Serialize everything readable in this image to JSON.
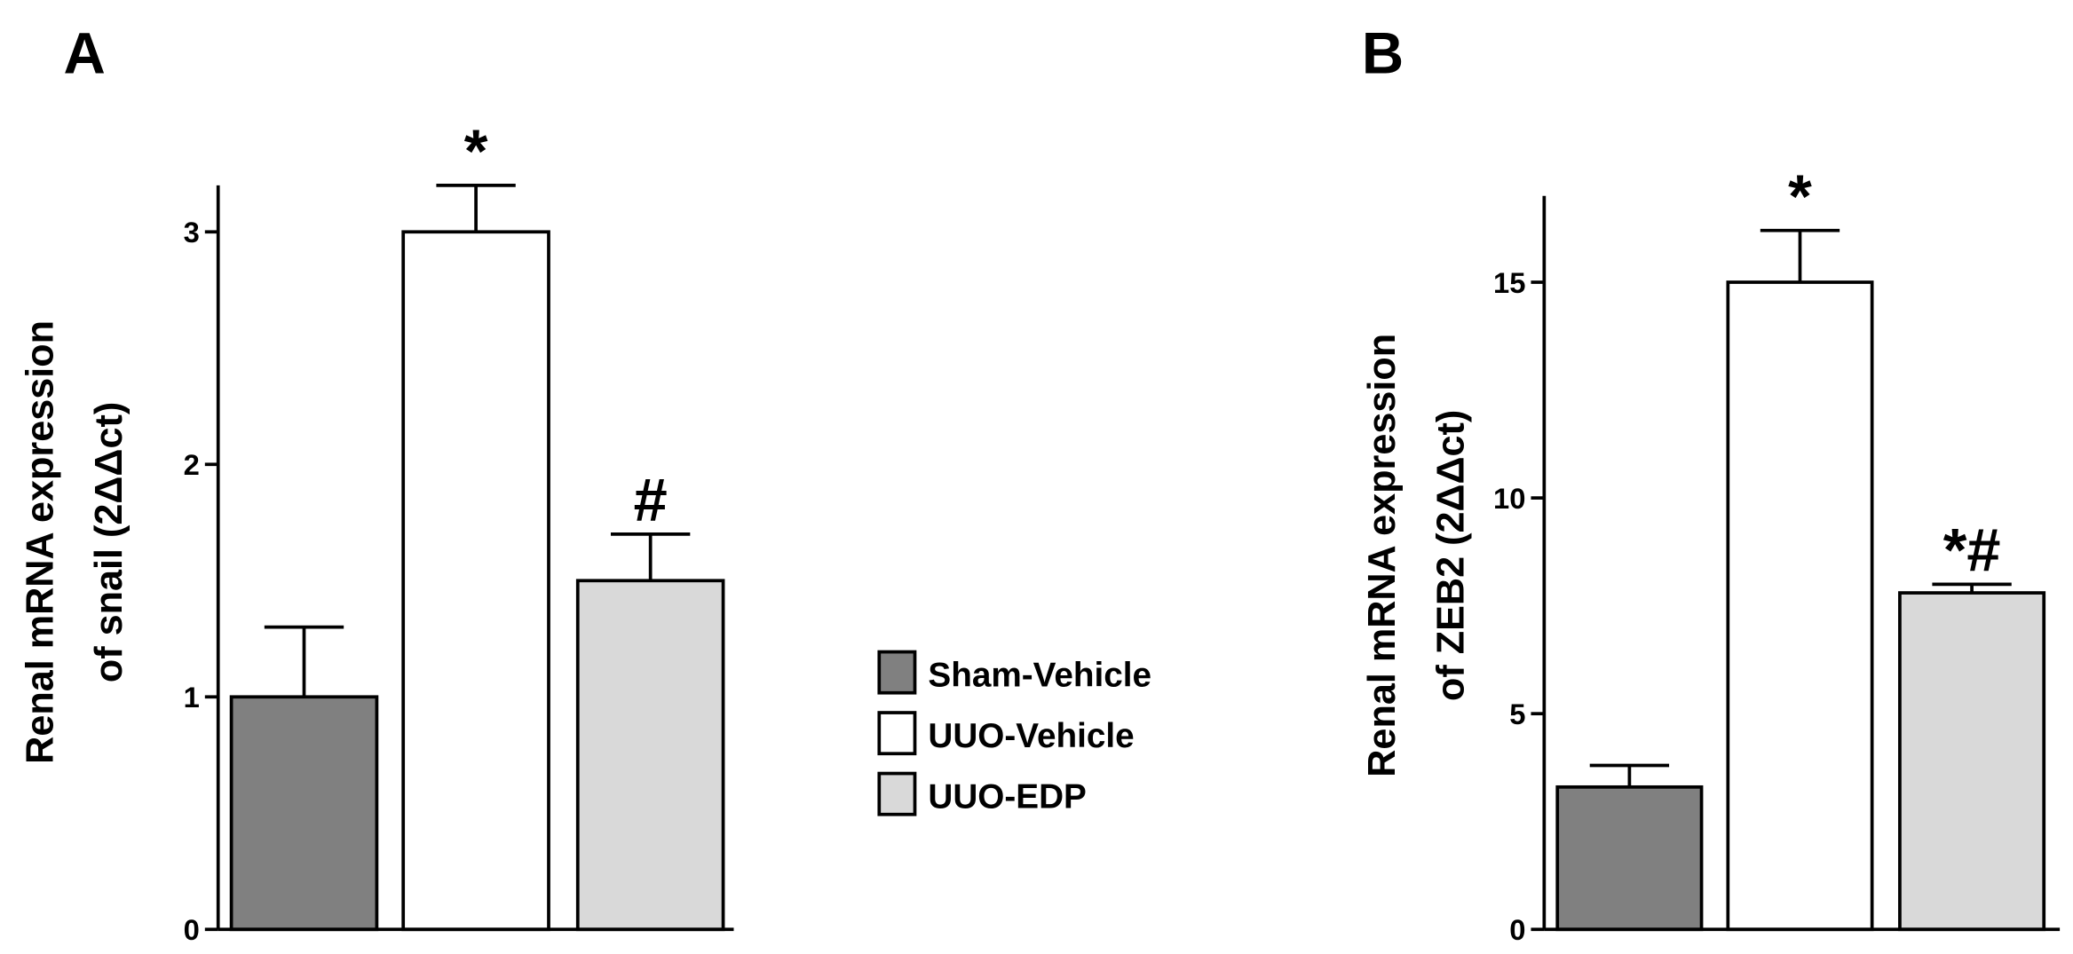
{
  "chart_data": [
    {
      "type": "bar",
      "panel_label": "A",
      "ylabel": [
        "Renal mRNA expression",
        "of snail (2ΔΔct)"
      ],
      "values": [
        1,
        3,
        1.5
      ],
      "errors": [
        0.3,
        0.2,
        0.2
      ],
      "annotations": [
        null,
        "*",
        "#"
      ],
      "ylim": [
        0,
        3.2
      ],
      "yticks": [
        0,
        1,
        2,
        3
      ]
    },
    {
      "type": "bar",
      "panel_label": "B",
      "ylabel": [
        "Renal mRNA expression",
        "of ZEB2 (2ΔΔct)"
      ],
      "values": [
        3.3,
        15,
        7.8
      ],
      "errors": [
        0.5,
        1.2,
        0.2
      ],
      "annotations": [
        null,
        "*",
        "*#"
      ],
      "ylim": [
        0,
        17
      ],
      "yticks": [
        0,
        5,
        10,
        15
      ]
    }
  ],
  "legend": {
    "items": [
      {
        "label": "Sham-Vehicle",
        "color": "#808080"
      },
      {
        "label": "UUO-Vehicle",
        "color": "#ffffff"
      },
      {
        "label": "UUO-EDP",
        "color": "#d9d9d9"
      }
    ]
  }
}
